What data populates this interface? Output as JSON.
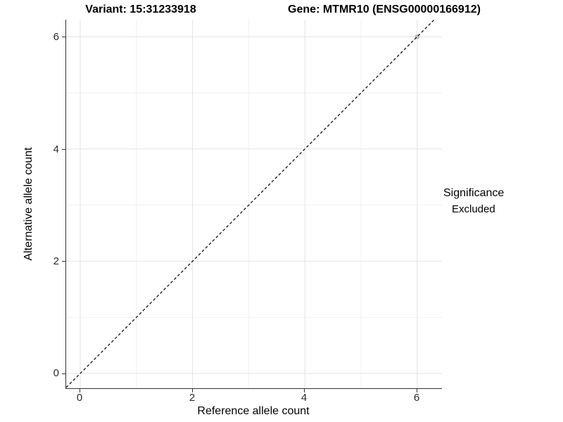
{
  "header": {
    "variant_title": "Variant: 15:31233918",
    "gene_title": "Gene: MTMR10 (ENSG00000166912)"
  },
  "axes": {
    "x": {
      "label": "Reference allele count",
      "ticks": [
        "0",
        "2",
        "4",
        "6"
      ]
    },
    "y": {
      "label": "Alternative allele count",
      "ticks": [
        "0",
        "2",
        "4",
        "6"
      ]
    }
  },
  "legend": {
    "title": "Significance",
    "items": [
      {
        "label": "Excluded",
        "color": "#bebebe"
      }
    ]
  },
  "colors": {
    "background": "#ffffff",
    "major_grid": "#e3e3e3",
    "minor_grid": "#f0f0f0",
    "axis_line": "#333333",
    "reference_line": "#000000",
    "excluded_point": "#bebebe"
  },
  "chart_data": {
    "type": "scatter",
    "title": "Variant: 15:31233918   Gene: MTMR10 (ENSG00000166912)",
    "xlabel": "Reference allele count",
    "ylabel": "Alternative allele count",
    "x_ticks": [
      0,
      2,
      4,
      6
    ],
    "y_ticks": [
      0,
      2,
      4,
      6
    ],
    "minor_ticks": [
      1,
      3,
      5
    ],
    "xlim": [
      -0.25,
      6.45
    ],
    "ylim": [
      -0.26,
      6.3
    ],
    "grid": "on (major at even counts, minor at odd counts)",
    "legend_position": "right",
    "series": [
      {
        "name": "Excluded",
        "color": "#bebebe",
        "points": [
          {
            "x": 6,
            "y": 6
          }
        ]
      }
    ],
    "reference_line": {
      "equation": "y = x",
      "style": "dashed",
      "color": "#000000"
    }
  }
}
